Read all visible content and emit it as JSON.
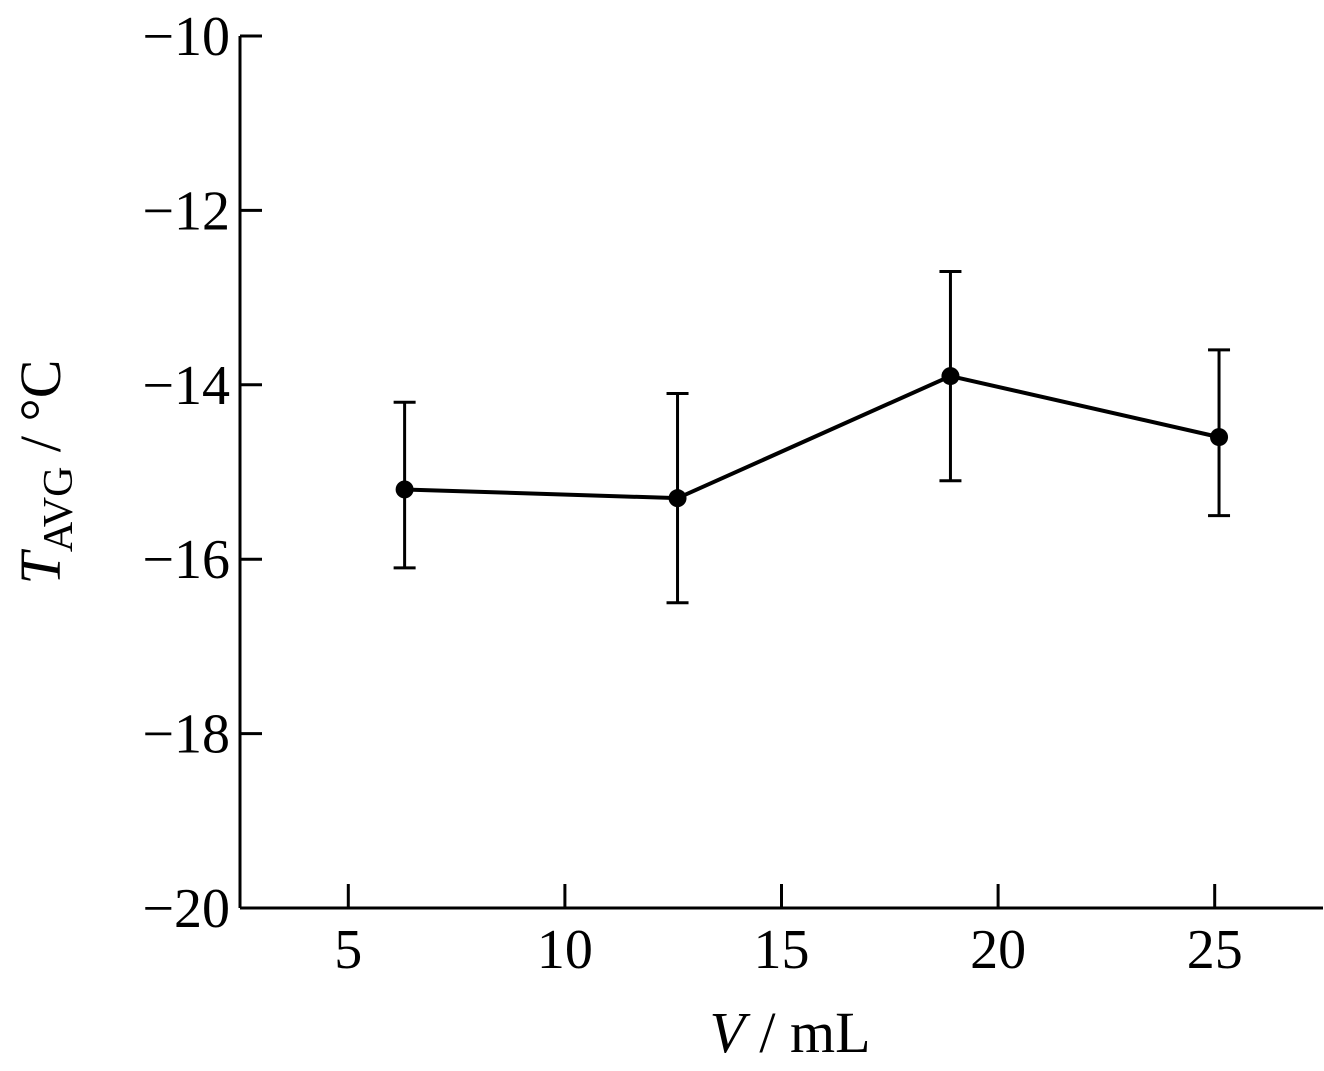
{
  "chart_data": {
    "type": "line",
    "xlabel": {
      "var": "V",
      "unit": "mL"
    },
    "ylabel": {
      "var": "T",
      "sub": "AVG",
      "unit": "°C"
    },
    "xlim": [
      2.5,
      27.5
    ],
    "ylim": [
      -20,
      -10
    ],
    "xticks": [
      5,
      10,
      15,
      20,
      25
    ],
    "yticks": [
      -10,
      -12,
      -14,
      -16,
      -18,
      -20
    ],
    "xtick_labels": [
      "5",
      "10",
      "15",
      "20",
      "25"
    ],
    "ytick_labels": [
      "−10",
      "−12",
      "−14",
      "−16",
      "−18",
      "−20"
    ],
    "grid": false,
    "series": [
      {
        "x": [
          6.3,
          12.6,
          18.9,
          25.1
        ],
        "y": [
          -15.2,
          -15.3,
          -13.9,
          -14.6
        ],
        "err_low": [
          -16.1,
          -16.5,
          -15.1,
          -15.5
        ],
        "err_high": [
          -14.2,
          -14.1,
          -12.7,
          -13.6
        ],
        "color": "#000000"
      }
    ]
  }
}
